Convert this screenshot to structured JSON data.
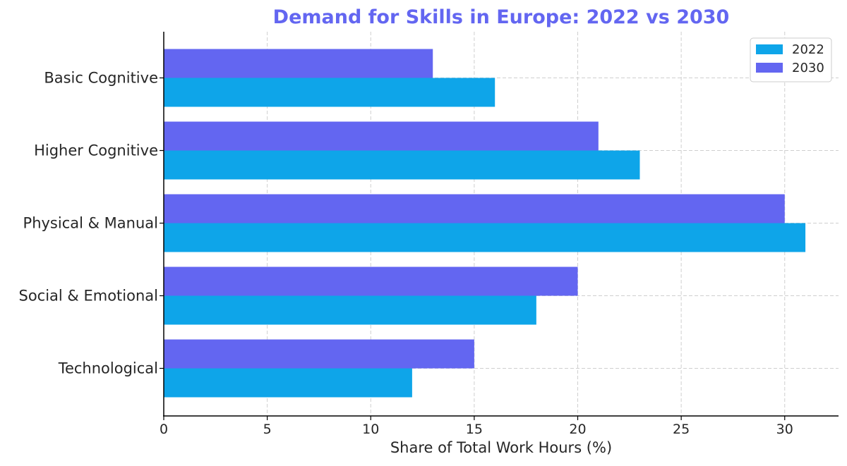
{
  "chart_data": {
    "type": "bar",
    "orientation": "horizontal",
    "title": "Demand for Skills in Europe: 2022 vs 2030",
    "xlabel": "Share of Total Work Hours (%)",
    "ylabel": "",
    "categories": [
      "Basic Cognitive",
      "Higher Cognitive",
      "Physical & Manual",
      "Social & Emotional",
      "Technological"
    ],
    "series": [
      {
        "name": "2022",
        "values": [
          16,
          23,
          31,
          18,
          12
        ],
        "color": "#0ea5e9"
      },
      {
        "name": "2030",
        "values": [
          13,
          21,
          30,
          20,
          15
        ],
        "color": "#6366f1"
      }
    ],
    "xlim": [
      0,
      32.6
    ],
    "xticks": [
      0,
      5,
      10,
      15,
      20,
      25,
      30
    ],
    "grid": true,
    "legend_position": "top-right",
    "title_color": "#6366f1"
  }
}
